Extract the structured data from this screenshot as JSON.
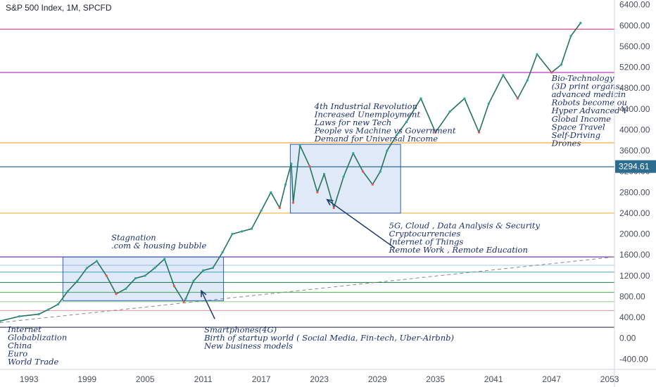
{
  "header": {
    "title": "S&P 500 Index, 1M, SPCFD"
  },
  "chart_data": {
    "type": "line",
    "title": "S&P 500 Index, 1M, SPCFD",
    "xlabel": "",
    "ylabel": "",
    "xlim": [
      1990,
      2053.5
    ],
    "ylim": [
      -450,
      6450
    ],
    "grid": false,
    "x_ticks": [
      "1993",
      "1999",
      "2005",
      "2011",
      "2017",
      "2023",
      "2029",
      "2035",
      "2041",
      "2047",
      "2053"
    ],
    "y_ticks": [
      "6400.00",
      "6000.00",
      "5600.00",
      "5200.00",
      "4800.00",
      "4400.00",
      "4000.00",
      "3600.00",
      "3200.00",
      "2800.00",
      "2400.00",
      "2000.00",
      "1600.00",
      "1200.00",
      "800.00",
      "400.00",
      "0.00",
      "-400.00"
    ],
    "last_price_label": "3294.61",
    "last_price": 3294.61,
    "series": [
      {
        "values_x": [
          1990,
          1992,
          1994,
          1995,
          1996,
          1997,
          1998,
          1999,
          2000,
          2001,
          2002,
          2003,
          2004,
          2005,
          2006,
          2007,
          2008,
          2009,
          2009.2,
          2010,
          2011,
          2012,
          2013,
          2014,
          2015,
          2016,
          2017,
          2018,
          2018.9,
          2019.5,
          2020.1,
          2020.3,
          2021,
          2022,
          2022.8,
          2023.5,
          2024.5,
          2025.5,
          2026.5,
          2027.5,
          2028.5,
          2029.3,
          2030,
          2031,
          2032,
          2033.5,
          2035,
          2036.5,
          2038,
          2039.5,
          2040.5,
          2042,
          2043.5,
          2044.5,
          2045.5,
          2047,
          2048,
          2049,
          2050
        ],
        "values_y": [
          330,
          420,
          460,
          550,
          650,
          900,
          1100,
          1350,
          1480,
          1200,
          850,
          950,
          1150,
          1200,
          1350,
          1520,
          1000,
          700,
          760,
          1100,
          1300,
          1350,
          1650,
          2000,
          2050,
          2100,
          2450,
          2800,
          2500,
          2950,
          3350,
          2600,
          3700,
          3300,
          2800,
          3150,
          2500,
          3100,
          3550,
          3200,
          2950,
          3200,
          3600,
          3900,
          4150,
          4600,
          3950,
          4350,
          4600,
          3950,
          4500,
          5050,
          4600,
          4950,
          5450,
          5100,
          5250,
          5800,
          6050
        ]
      }
    ],
    "horizontal_levels": [
      {
        "value": 5930,
        "color": "#e8477a"
      },
      {
        "value": 5100,
        "color": "#c43bd0"
      },
      {
        "value": 3750,
        "color": "#f7a12a"
      },
      {
        "value": 3290,
        "color": "#2c6d8f"
      },
      {
        "value": 2400,
        "color": "#f0b43c"
      },
      {
        "value": 1560,
        "color": "#7a3ab0"
      },
      {
        "value": 1400,
        "color": "#b9d4ee"
      },
      {
        "value": 1270,
        "color": "#6fb8d6"
      },
      {
        "value": 1070,
        "color": "#2e8b57"
      },
      {
        "value": 880,
        "color": "#66bb6a"
      },
      {
        "value": 700,
        "color": "#9bd39b"
      },
      {
        "value": 530,
        "color": "#f4a0a0"
      },
      {
        "value": 210,
        "color": "#4a4f5c"
      }
    ],
    "trendline": {
      "x": [
        1990,
        2053.5
      ],
      "y": [
        300,
        1560
      ],
      "style": "dashed",
      "color": "#888888"
    },
    "boxes": [
      {
        "x0": 1996.5,
        "x1": 2013.1,
        "y0": 720,
        "y1": 1560
      },
      {
        "x0": 2020.0,
        "x1": 2031.4,
        "y0": 2400,
        "y1": 3720
      }
    ],
    "arrows": [
      {
        "from_x": 2012.2,
        "from_y": 370,
        "to_x": 2010.8,
        "to_y": 910
      },
      {
        "from_x": 2030.8,
        "from_y": 1730,
        "to_x": 2023.8,
        "to_y": 2660
      }
    ],
    "annotations": [
      {
        "x": 2001.5,
        "y": 1880,
        "lines": [
          "Stagnation",
          ".com & housing bubble"
        ]
      },
      {
        "x": 2022.5,
        "y": 4400,
        "lines": [
          "4th Industrial Revolution",
          "Increased Unemployment",
          "Laws for new Tech",
          "People vs Machine vs Government",
          "Demand for Universal Income"
        ]
      },
      {
        "x": 2030.2,
        "y": 2110,
        "lines": [
          "5G, Cloud , Data Analysis & Security",
          "Cryptocurrencies",
          "Internet of Things",
          "Remote Work , Remote Education"
        ]
      },
      {
        "x": 2011.1,
        "y": 110,
        "lines": [
          "Smartphones(4G)",
          "Birth of startup world ( Social Media, Fin-tech, Uber-Airbnb)",
          "New business models"
        ]
      },
      {
        "x": 1990.8,
        "y": 120,
        "lines": [
          "Internet",
          "Globablization",
          "China",
          "Euro",
          "World Trade"
        ]
      },
      {
        "x": 2047.0,
        "y": 4940,
        "lines": [
          "Bio-Technology",
          "(3D print organs,",
          "advanced medicin",
          "Robots become ou",
          "Hyper Advanced V",
          "Global Income",
          "Space Travel",
          "Self-Driving",
          "Drones"
        ]
      }
    ]
  }
}
